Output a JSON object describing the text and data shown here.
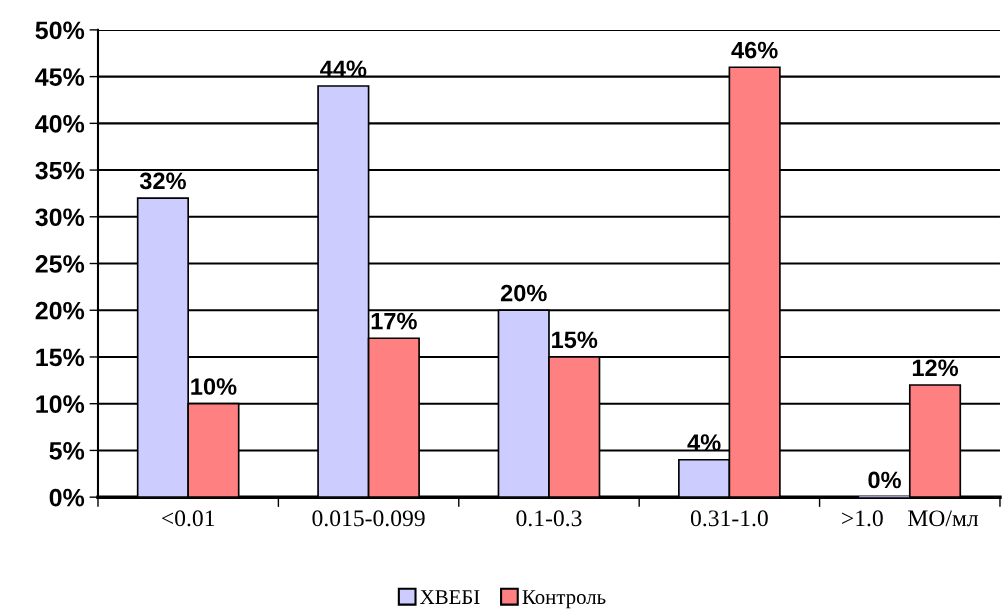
{
  "chart_data": {
    "type": "bar",
    "categories": [
      "<0.01",
      "0.015-0.099",
      "0.1-0.3",
      "0.31-1.0",
      ">1.0    МО/мл"
    ],
    "series": [
      {
        "name": "ХВЕБІ",
        "color": "#ccccff",
        "values": [
          32,
          44,
          20,
          4,
          0
        ],
        "value_labels": [
          "32%",
          "44%",
          "20%",
          "4%",
          "0%"
        ]
      },
      {
        "name": "Контроль",
        "color": "#ff8080",
        "values": [
          10,
          17,
          15,
          46,
          12
        ],
        "value_labels": [
          "10%",
          "17%",
          "15%",
          "46%",
          "12%"
        ]
      }
    ],
    "ylim": [
      0,
      50
    ],
    "yticks": [
      {
        "value": 0,
        "label": "0%"
      },
      {
        "value": 5,
        "label": "5%"
      },
      {
        "value": 10,
        "label": "10%"
      },
      {
        "value": 15,
        "label": "15%"
      },
      {
        "value": 20,
        "label": "20%"
      },
      {
        "value": 25,
        "label": "25%"
      },
      {
        "value": 30,
        "label": "30%"
      },
      {
        "value": 35,
        "label": "35%"
      },
      {
        "value": 40,
        "label": "40%"
      },
      {
        "value": 45,
        "label": "45%"
      },
      {
        "value": 50,
        "label": "50%"
      }
    ],
    "grid": "y",
    "legend": "bottom"
  }
}
